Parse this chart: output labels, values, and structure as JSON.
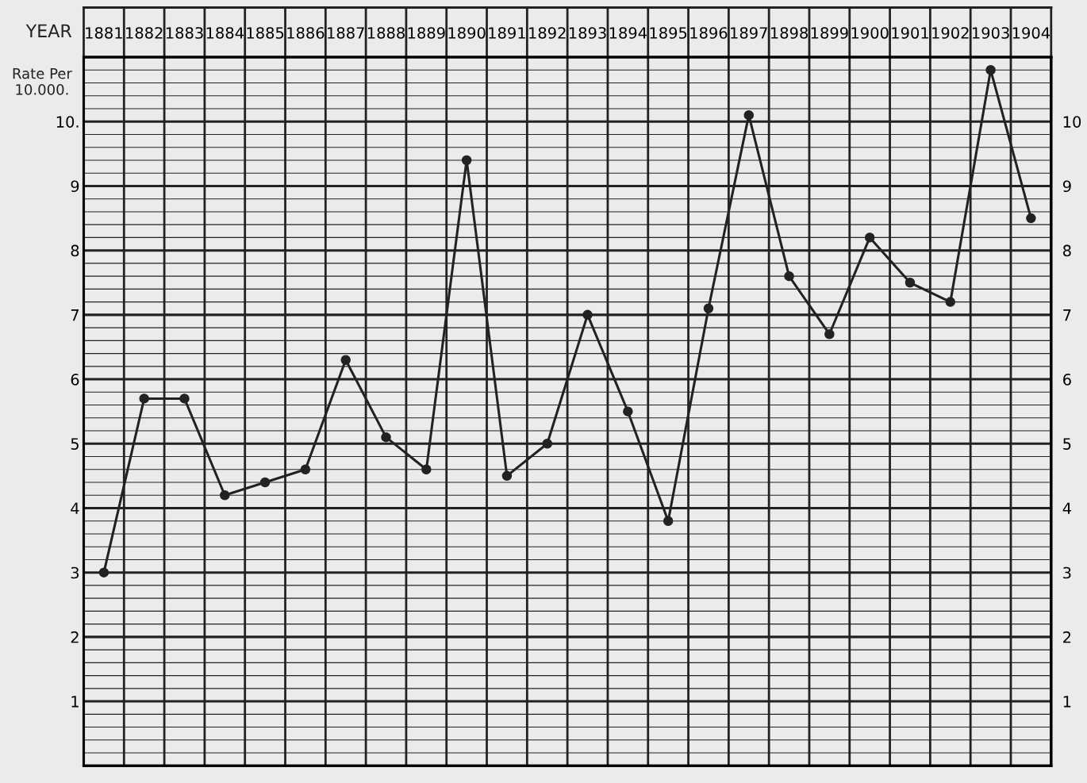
{
  "chart_data": {
    "type": "line",
    "xlabel": "YEAR",
    "ylabel": "Rate Per\n10.000.",
    "categories": [
      "1881",
      "1882",
      "1883",
      "1884",
      "1885",
      "1886",
      "1887",
      "1888",
      "1889",
      "1890",
      "1891",
      "1892",
      "1893",
      "1894",
      "1895",
      "1896",
      "1897",
      "1898",
      "1899",
      "1900",
      "1901",
      "1902",
      "1903",
      "1904"
    ],
    "series": [
      {
        "color": "#222222",
        "values": [
          3.0,
          5.7,
          5.7,
          4.2,
          4.4,
          4.6,
          6.3,
          5.1,
          4.6,
          9.4,
          4.5,
          5.0,
          7.0,
          5.5,
          3.8,
          7.1,
          10.1,
          7.6,
          6.7,
          8.2,
          7.5,
          7.2,
          10.8,
          8.5
        ]
      }
    ],
    "ylim": [
      0,
      11
    ],
    "yticks": [
      {
        "value": 0.2,
        "label": null
      },
      {
        "value": 0.4,
        "label": null
      },
      {
        "value": 0.6,
        "label": null
      },
      {
        "value": 0.8,
        "label": null
      },
      1,
      {
        "value": 1.2,
        "label": null
      },
      {
        "value": 1.4,
        "label": null
      },
      {
        "value": 1.6,
        "label": null
      },
      {
        "value": 1.8,
        "label": null
      },
      2,
      {
        "value": 2.2,
        "label": null
      },
      {
        "value": 2.4,
        "label": null
      },
      {
        "value": 2.6,
        "label": null
      },
      {
        "value": 2.8,
        "label": null
      },
      3,
      {
        "value": 3.2,
        "label": null
      },
      {
        "value": 3.4,
        "label": null
      },
      {
        "value": 3.6,
        "label": null
      },
      {
        "value": 3.8,
        "label": null
      },
      4,
      {
        "value": 4.2,
        "label": null
      },
      {
        "value": 4.4,
        "label": null
      },
      {
        "value": 4.6,
        "label": null
      },
      {
        "value": 4.8,
        "label": null
      },
      5,
      {
        "value": 5.2,
        "label": null
      },
      {
        "value": 5.4,
        "label": null
      },
      {
        "value": 5.6,
        "label": null
      },
      {
        "value": 5.8,
        "label": null
      },
      6,
      {
        "value": 6.2,
        "label": null
      },
      {
        "value": 6.4,
        "label": null
      },
      {
        "value": 6.6,
        "label": null
      },
      {
        "value": 6.8,
        "label": null
      },
      7,
      {
        "value": 7.2,
        "label": null
      },
      {
        "value": 7.4,
        "label": null
      },
      {
        "value": 7.6,
        "label": null
      },
      {
        "value": 7.8,
        "label": null
      },
      8,
      {
        "value": 8.2,
        "label": null
      },
      {
        "value": 8.4,
        "label": null
      },
      {
        "value": 8.6,
        "label": null
      },
      {
        "value": 8.8,
        "label": null
      },
      9,
      {
        "value": 9.2,
        "label": null
      },
      {
        "value": 9.4,
        "label": null
      },
      {
        "value": 9.6,
        "label": null
      },
      {
        "value": 9.8,
        "label": null
      },
      {
        "value": 10,
        "label": "10."
      },
      {
        "value": 10.2,
        "label": null
      },
      {
        "value": 10.4,
        "label": null
      },
      {
        "value": 10.6,
        "label": null
      },
      {
        "value": 10.8,
        "label": null
      }
    ],
    "y2lim": [
      0,
      11
    ],
    "y2ticks": [
      1,
      2,
      3,
      4,
      5,
      6,
      7,
      8,
      9,
      10
    ],
    "grid": true,
    "marker": "circle",
    "line_style": "solid"
  }
}
